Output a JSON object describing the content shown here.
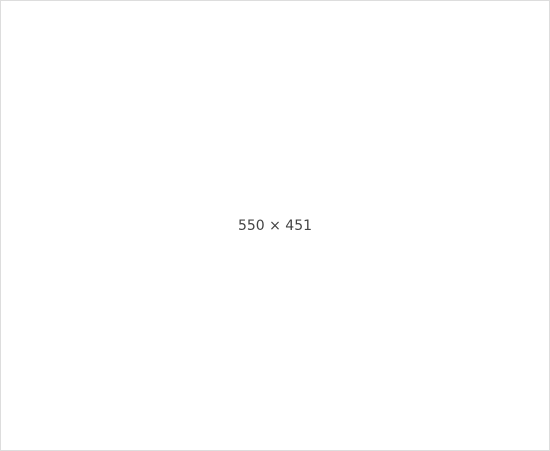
{
  "note": "550 × 451"
}
